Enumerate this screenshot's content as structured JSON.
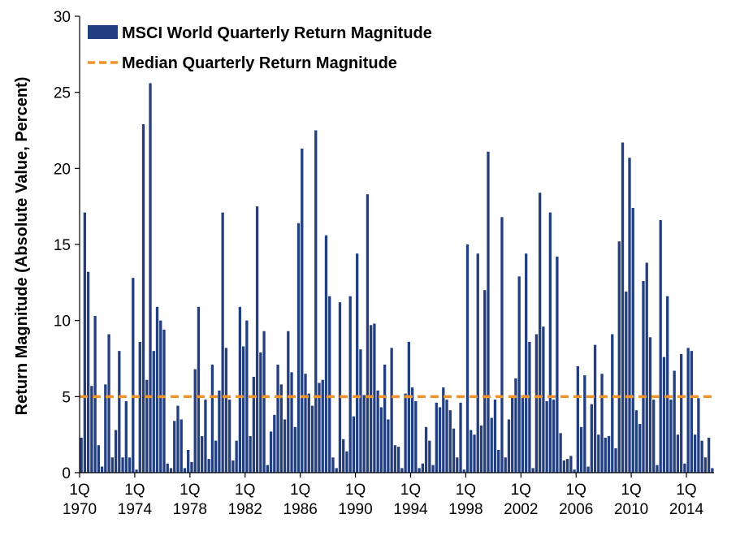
{
  "chart_data": {
    "type": "bar",
    "title": "",
    "xlabel": "",
    "ylabel": "Return Magnitude (Absolute Value, Percent)",
    "ylim": [
      0,
      30
    ],
    "yticks": [
      0,
      5,
      10,
      15,
      20,
      25,
      30
    ],
    "grid": false,
    "legend_position": "top-left",
    "x_start": {
      "year": 1970,
      "quarter": 1
    },
    "x_tick_labels": [
      {
        "q": "1Q",
        "year": "1970"
      },
      {
        "q": "1Q",
        "year": "1974"
      },
      {
        "q": "1Q",
        "year": "1978"
      },
      {
        "q": "1Q",
        "year": "1982"
      },
      {
        "q": "1Q",
        "year": "1986"
      },
      {
        "q": "1Q",
        "year": "1990"
      },
      {
        "q": "1Q",
        "year": "1994"
      },
      {
        "q": "1Q",
        "year": "1998"
      },
      {
        "q": "1Q",
        "year": "2002"
      },
      {
        "q": "1Q",
        "year": "2006"
      },
      {
        "q": "1Q",
        "year": "2010"
      },
      {
        "q": "1Q",
        "year": "2014"
      }
    ],
    "series": [
      {
        "name": "MSCI World Quarterly Return Magnitude",
        "color": "#233f7f",
        "values": [
          2.3,
          17.1,
          13.2,
          5.7,
          10.3,
          1.8,
          0.4,
          5.8,
          9.1,
          1.0,
          2.8,
          8.0,
          1.0,
          4.7,
          1.0,
          12.8,
          0.2,
          8.6,
          22.9,
          6.1,
          25.6,
          8.0,
          10.9,
          10.0,
          9.4,
          0.6,
          0.3,
          3.4,
          4.4,
          3.5,
          0.3,
          1.5,
          0.7,
          6.8,
          10.9,
          2.4,
          4.8,
          0.9,
          7.1,
          2.1,
          5.4,
          17.1,
          8.2,
          4.8,
          0.8,
          2.1,
          10.9,
          8.3,
          10.0,
          2.4,
          6.3,
          17.5,
          7.9,
          9.3,
          0.5,
          2.7,
          3.8,
          7.1,
          5.8,
          3.5,
          9.3,
          6.6,
          3.0,
          16.4,
          21.3,
          6.5,
          5.2,
          4.4,
          22.5,
          5.9,
          6.1,
          15.6,
          11.6,
          1.0,
          0.3,
          11.2,
          2.2,
          1.4,
          11.6,
          3.7,
          14.4,
          8.1,
          5.1,
          18.3,
          9.7,
          9.8,
          5.4,
          4.3,
          7.1,
          3.5,
          8.2,
          1.8,
          1.7,
          0.3,
          5.2,
          8.6,
          5.6,
          4.7,
          0.3,
          0.6,
          3.0,
          2.1,
          0.5,
          4.6,
          4.3,
          5.6,
          4.8,
          4.1,
          2.9,
          1.0,
          4.6,
          0.2,
          15.0,
          2.8,
          2.5,
          14.4,
          3.1,
          12.0,
          21.1,
          3.6,
          4.8,
          1.5,
          16.8,
          1.0,
          3.5,
          5.0,
          6.2,
          12.9,
          5.1,
          14.4,
          8.6,
          0.3,
          9.1,
          18.4,
          9.6,
          4.7,
          17.1,
          4.8,
          14.2,
          2.6,
          0.8,
          0.9,
          1.1,
          0.2,
          7.0,
          3.0,
          6.4,
          0.4,
          4.5,
          8.4,
          2.5,
          6.5,
          2.3,
          2.4,
          9.1,
          1.6,
          15.2,
          21.7,
          11.9,
          20.7,
          17.4,
          4.1,
          3.2,
          12.6,
          13.8,
          8.9,
          4.8,
          0.5,
          16.6,
          7.6,
          11.6,
          4.8,
          6.7,
          2.5,
          7.8,
          0.6,
          8.2,
          8.0,
          2.5,
          4.9,
          2.1,
          1.0,
          2.3,
          0.3
        ]
      },
      {
        "name": "Median Quarterly Return Magnitude",
        "color": "#f0922e",
        "style": "dashed",
        "value": 5.0
      }
    ]
  }
}
